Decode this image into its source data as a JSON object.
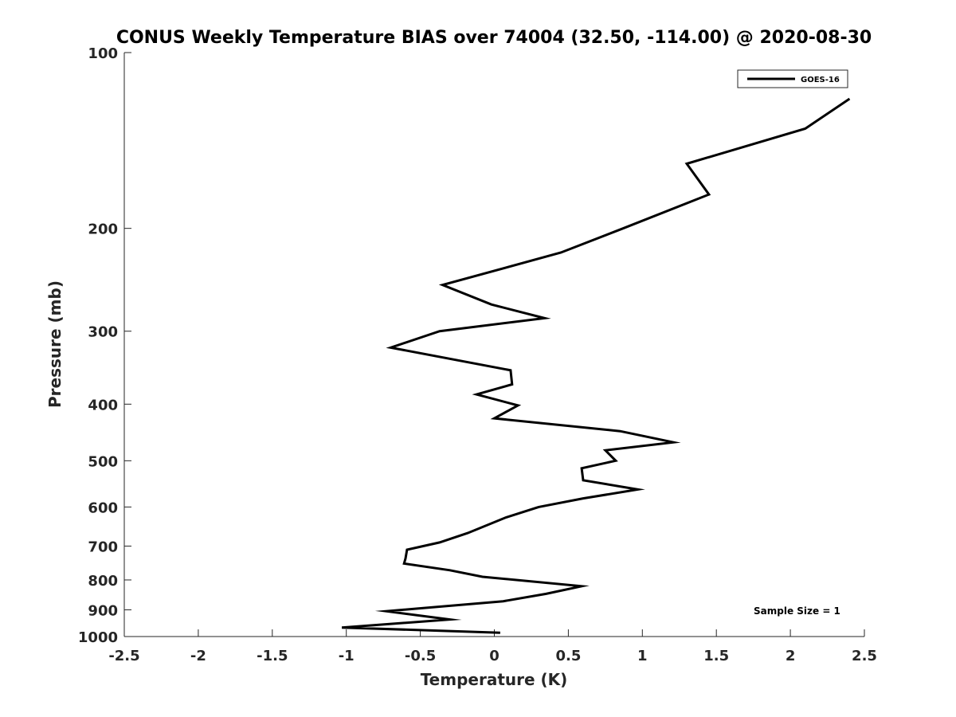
{
  "chart_data": {
    "type": "line",
    "title": "CONUS Weekly Temperature BIAS over 74004 (32.50, -114.00) @ 2020-08-30",
    "xlabel": "Temperature (K)",
    "ylabel": "Pressure (mb)",
    "xlim": [
      -2.5,
      2.5
    ],
    "ylim": [
      1000,
      100
    ],
    "y_scale": "log",
    "y_reversed": true,
    "x_ticks": [
      -2.5,
      -2,
      -1.5,
      -1,
      -0.5,
      0,
      0.5,
      1,
      1.5,
      2,
      2.5
    ],
    "x_tick_labels": [
      "-2.5",
      "-2",
      "-1.5",
      "-1",
      "-0.5",
      "0",
      "0.5",
      "1",
      "1.5",
      "2",
      "2.5"
    ],
    "y_ticks": [
      100,
      200,
      300,
      400,
      500,
      600,
      700,
      800,
      900,
      1000
    ],
    "y_tick_labels": [
      "100",
      "200",
      "300",
      "400",
      "500",
      "600",
      "700",
      "800",
      "900",
      "1000"
    ],
    "grid": false,
    "legend_position": "top-right",
    "line_color": "#000000",
    "series": [
      {
        "name": "GOES-16",
        "x": [
          2.4,
          2.1,
          1.3,
          1.45,
          0.87,
          0.45,
          -0.35,
          -0.02,
          0.34,
          -0.37,
          -0.7,
          0.11,
          0.12,
          -0.12,
          0.16,
          0.0,
          0.85,
          1.21,
          0.75,
          0.82,
          0.59,
          0.6,
          0.97,
          0.6,
          0.3,
          0.08,
          -0.18,
          -0.37,
          -0.59,
          -0.6,
          -0.61,
          -0.3,
          -0.08,
          0.59,
          0.35,
          0.06,
          -0.73,
          -0.3,
          -1.03,
          0.04
        ],
        "y": [
          120,
          135,
          155,
          175,
          200,
          220,
          250,
          270,
          285,
          300,
          320,
          350,
          370,
          385,
          402,
          423,
          445,
          465,
          480,
          500,
          515,
          540,
          560,
          580,
          600,
          625,
          665,
          690,
          710,
          735,
          750,
          770,
          790,
          820,
          845,
          870,
          905,
          935,
          965,
          985
        ]
      }
    ],
    "annotations": [
      "Sample Size = 1"
    ]
  }
}
